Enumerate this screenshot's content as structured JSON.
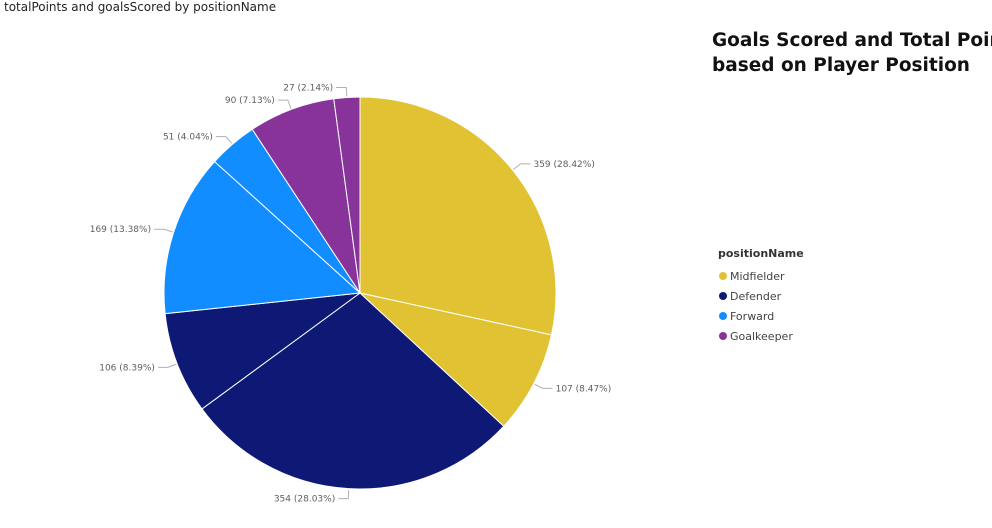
{
  "visual_title": "totalPoints and goalsScored by positionName",
  "text_box": {
    "line1": "Goals Scored and Total Points",
    "line2": "based on Player Position"
  },
  "legend": {
    "title": "positionName",
    "items": [
      {
        "label": "Midfielder",
        "color": "#E0C233"
      },
      {
        "label": "Defender",
        "color": "#0E1976"
      },
      {
        "label": "Forward",
        "color": "#118DFF"
      },
      {
        "label": "Goalkeeper",
        "color": "#88339A"
      }
    ]
  },
  "chart_data": {
    "type": "pie",
    "title": "totalPoints and goalsScored by positionName",
    "legend_title": "positionName",
    "legend_position": "right",
    "slices": [
      {
        "category": "Midfielder",
        "measure": "totalPoints",
        "value": 359,
        "label": "359 (28.42%)",
        "color": "#E0C233"
      },
      {
        "category": "Midfielder",
        "measure": "goalsScored",
        "value": 107,
        "label": "107 (8.47%)",
        "color": "#E0C233"
      },
      {
        "category": "Defender",
        "measure": "totalPoints",
        "value": 354,
        "label": "354 (28.03%)",
        "color": "#0E1976"
      },
      {
        "category": "Defender",
        "measure": "goalsScored",
        "value": 106,
        "label": "106 (8.39%)",
        "color": "#0E1976"
      },
      {
        "category": "Forward",
        "measure": "totalPoints",
        "value": 169,
        "label": "169 (13.38%)",
        "color": "#118DFF"
      },
      {
        "category": "Forward",
        "measure": "goalsScored",
        "value": 51,
        "label": "51 (4.04%)",
        "color": "#118DFF"
      },
      {
        "category": "Goalkeeper",
        "measure": "totalPoints",
        "value": 90,
        "label": "90 (7.13%)",
        "color": "#88339A"
      },
      {
        "category": "Goalkeeper",
        "measure": "goalsScored",
        "value": 27,
        "label": "27 (2.14%)",
        "color": "#88339A"
      }
    ]
  }
}
